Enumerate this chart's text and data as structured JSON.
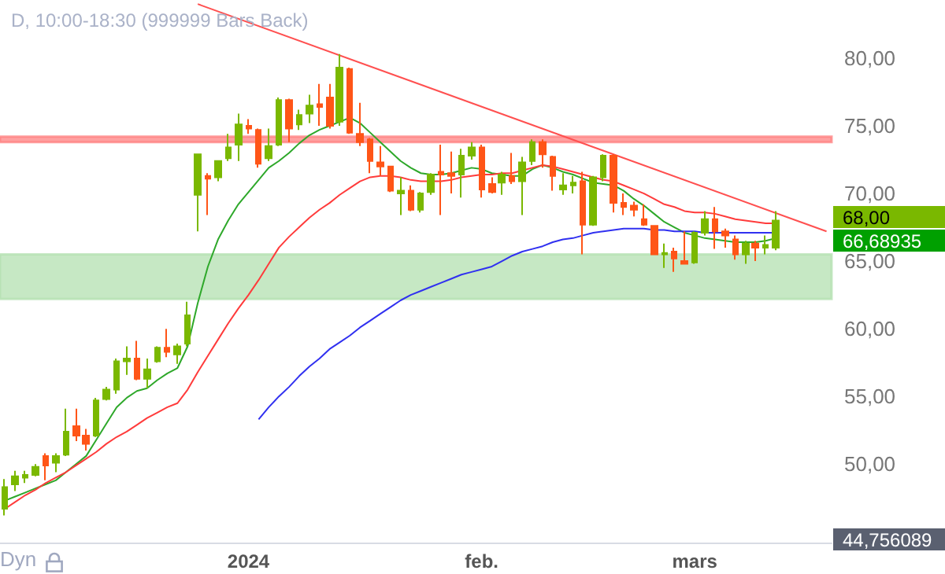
{
  "chart_data": {
    "type": "candlestick",
    "title": "D, 10:00-18:30 (999999 Bars Back)",
    "categories": [
      null,
      null,
      null,
      null,
      null,
      null,
      null,
      null,
      null,
      null,
      null,
      null,
      null,
      null,
      null,
      null,
      null,
      null,
      null,
      null,
      null,
      null,
      null,
      null,
      "2024",
      null,
      null,
      null,
      null,
      null,
      null,
      null,
      null,
      null,
      null,
      null,
      null,
      null,
      null,
      null,
      null,
      null,
      null,
      null,
      null,
      null,
      null,
      "feb.",
      null,
      null,
      null,
      null,
      null,
      null,
      null,
      null,
      null,
      null,
      null,
      null,
      null,
      null,
      null,
      null,
      null,
      null,
      null,
      null,
      "mars",
      null,
      null,
      null,
      null,
      null,
      null,
      null,
      null,
      null,
      null,
      null,
      null,
      null
    ],
    "ohlc": [
      [
        46.7,
        48.9,
        46.2,
        48.3
      ],
      [
        48.5,
        49.5,
        48.0,
        49.1
      ],
      [
        49.0,
        49.5,
        48.6,
        49.2
      ],
      [
        49.2,
        50.0,
        49.1,
        49.8
      ],
      [
        50.6,
        50.8,
        48.8,
        49.9
      ],
      [
        50.1,
        50.8,
        49.4,
        50.6
      ],
      [
        50.7,
        54.1,
        50.6,
        52.4
      ],
      [
        52.8,
        54.1,
        51.7,
        52.1
      ],
      [
        52.1,
        52.6,
        51.0,
        51.5
      ],
      [
        52.1,
        54.9,
        52.0,
        54.7
      ],
      [
        54.8,
        55.7,
        54.7,
        55.5
      ],
      [
        55.5,
        57.8,
        55.2,
        57.6
      ],
      [
        57.6,
        58.7,
        56.6,
        57.8
      ],
      [
        57.8,
        59.1,
        56.2,
        56.3
      ],
      [
        56.3,
        57.8,
        55.6,
        57.0
      ],
      [
        57.6,
        58.7,
        57.5,
        58.6
      ],
      [
        58.6,
        60.0,
        57.9,
        58.3
      ],
      [
        58.1,
        58.9,
        57.4,
        58.7
      ],
      [
        58.9,
        62.0,
        58.7,
        61.0
      ],
      [
        69.9,
        72.9,
        67.2,
        72.9
      ],
      [
        71.3,
        71.5,
        68.4,
        71.1
      ],
      [
        71.2,
        72.4,
        70.9,
        72.4
      ],
      [
        72.6,
        74.4,
        72.4,
        73.4
      ],
      [
        73.6,
        75.9,
        72.4,
        75.1
      ],
      [
        75.0,
        75.5,
        74.4,
        74.8
      ],
      [
        74.7,
        74.8,
        71.9,
        72.2
      ],
      [
        72.6,
        74.8,
        72.4,
        73.5
      ],
      [
        73.6,
        77.1,
        73.5,
        76.9
      ],
      [
        76.9,
        77.0,
        73.8,
        74.8
      ],
      [
        75.1,
        76.2,
        74.7,
        75.8
      ],
      [
        75.9,
        77.3,
        75.2,
        76.5
      ],
      [
        76.6,
        78.1,
        75.0,
        76.4
      ],
      [
        77.1,
        78.1,
        74.8,
        75.0
      ],
      [
        75.3,
        80.3,
        75.0,
        79.3
      ],
      [
        79.2,
        79.3,
        74.4,
        74.5
      ],
      [
        74.4,
        76.7,
        73.5,
        73.8
      ],
      [
        74.0,
        74.1,
        71.5,
        72.4
      ],
      [
        72.3,
        73.5,
        71.3,
        72.0
      ],
      [
        72.0,
        72.0,
        70.1,
        70.2
      ],
      [
        70.0,
        71.2,
        68.4,
        70.2
      ],
      [
        70.2,
        70.6,
        68.7,
        68.8
      ],
      [
        68.8,
        70.1,
        68.6,
        70.0
      ],
      [
        70.1,
        71.5,
        69.9,
        71.4
      ],
      [
        71.6,
        73.6,
        68.4,
        71.4
      ],
      [
        71.5,
        73.1,
        70.0,
        71.3
      ],
      [
        71.4,
        73.3,
        69.7,
        72.8
      ],
      [
        72.8,
        73.8,
        72.5,
        73.4
      ],
      [
        73.4,
        73.6,
        69.7,
        70.3
      ],
      [
        70.7,
        71.2,
        70.0,
        70.1
      ],
      [
        70.8,
        71.6,
        69.9,
        71.4
      ],
      [
        71.3,
        73.0,
        70.7,
        70.9
      ],
      [
        70.9,
        72.7,
        68.4,
        72.3
      ],
      [
        72.4,
        74.0,
        72.1,
        73.8
      ],
      [
        73.8,
        74.0,
        71.9,
        72.9
      ],
      [
        72.7,
        72.8,
        70.2,
        71.3
      ],
      [
        70.3,
        71.5,
        69.9,
        70.6
      ],
      [
        70.6,
        71.3,
        70.0,
        70.8
      ],
      [
        70.9,
        71.6,
        65.5,
        67.7
      ],
      [
        67.7,
        71.3,
        67.6,
        71.2
      ],
      [
        71.2,
        72.9,
        70.9,
        72.8
      ],
      [
        72.8,
        72.9,
        68.6,
        69.3
      ],
      [
        69.3,
        70.0,
        68.4,
        69.0
      ],
      [
        69.1,
        69.4,
        68.3,
        68.8
      ],
      [
        68.1,
        69.2,
        67.6,
        67.7
      ],
      [
        67.6,
        67.6,
        65.5,
        65.5
      ],
      [
        65.5,
        66.3,
        64.5,
        65.6
      ],
      [
        65.7,
        66.0,
        64.2,
        65.2
      ],
      [
        65.0,
        67.2,
        64.8,
        64.8
      ],
      [
        64.9,
        67.2,
        64.8,
        67.1
      ],
      [
        67.1,
        68.7,
        66.9,
        68.1
      ],
      [
        68.1,
        69.0,
        65.9,
        67.2
      ],
      [
        67.2,
        67.4,
        66.0,
        66.9
      ],
      [
        66.6,
        66.9,
        65.1,
        65.5
      ],
      [
        65.5,
        66.5,
        64.8,
        66.3
      ],
      [
        66.3,
        66.5,
        65.0,
        66.0
      ],
      [
        66.0,
        66.9,
        65.5,
        66.2
      ],
      [
        66.0,
        68.7,
        65.8,
        68.0
      ],
      null,
      null,
      null,
      null,
      null
    ],
    "colors": [
      "#7ab800",
      "#7ab800",
      "#7ab800",
      "#7ab800",
      "#ff5517",
      "#7ab800",
      "#7ab800",
      "#ff5517",
      "#ff5517",
      "#7ab800",
      "#7ab800",
      "#7ab800",
      "#7ab800",
      "#ff5517",
      "#7ab800",
      "#7ab800",
      "#ff5517",
      "#7ab800",
      "#7ab800",
      "#7ab800",
      "#ff5517",
      "#7ab800",
      "#7ab800",
      "#7ab800",
      "#ff5517",
      "#ff5517",
      "#7ab800",
      "#7ab800",
      "#ff5517",
      "#7ab800",
      "#7ab800",
      "#ff5517",
      "#ff5517",
      "#7ab800",
      "#ff5517",
      "#ff5517",
      "#ff5517",
      "#ff5517",
      "#ff5517",
      "#7ab800",
      "#ff5517",
      "#7ab800",
      "#7ab800",
      "#ff5517",
      "#ff5517",
      "#7ab800",
      "#7ab800",
      "#ff5517",
      "#ff5517",
      "#7ab800",
      "#ff5517",
      "#7ab800",
      "#7ab800",
      "#ff5517",
      "#ff5517",
      "#7ab800",
      "#7ab800",
      "#ff5517",
      "#7ab800",
      "#7ab800",
      "#ff5517",
      "#ff5517",
      "#ff5517",
      "#ff5517",
      "#ff5517",
      "#7ab800",
      "#ff5517",
      "#ff5517",
      "#7ab800",
      "#7ab800",
      "#ff5517",
      "#ff5517",
      "#ff5517",
      "#7ab800",
      "#ff5517",
      "#7ab800",
      "#7ab800",
      null,
      null,
      null,
      null,
      null
    ],
    "series": [
      {
        "type": "line",
        "color": "#2ea82a",
        "values": [
          47.3,
          47.6,
          47.9,
          48.2,
          48.5,
          48.8,
          49.4,
          50.0,
          50.6,
          51.8,
          53.0,
          54.2,
          54.9,
          55.4,
          55.6,
          56.2,
          56.7,
          57.1,
          58.7,
          61.9,
          64.6,
          66.6,
          68.0,
          69.2,
          70.1,
          71.0,
          71.9,
          72.4,
          73.0,
          73.7,
          74.3,
          74.7,
          75.0,
          75.3,
          75.6,
          75.2,
          74.5,
          73.8,
          73.1,
          72.4,
          71.9,
          71.5,
          71.4,
          71.4,
          71.5,
          71.7,
          71.9,
          71.8,
          71.5,
          71.4,
          71.3,
          71.3,
          71.8,
          72.1,
          71.9,
          71.6,
          71.4,
          71.1,
          70.8,
          70.7,
          70.6,
          70.2,
          69.6,
          69.1,
          68.5,
          67.9,
          67.5,
          67.1,
          66.9,
          66.7,
          66.6,
          66.5,
          66.4,
          66.4,
          66.4,
          66.5,
          66.7,
          null,
          null,
          null,
          null,
          null
        ]
      },
      {
        "type": "line",
        "color": "#ff3b3b",
        "values": [
          46.7,
          47.2,
          47.7,
          48.1,
          48.6,
          49.0,
          49.4,
          49.9,
          50.4,
          50.9,
          51.5,
          52.0,
          52.4,
          52.9,
          53.4,
          53.8,
          54.2,
          54.5,
          55.5,
          56.8,
          58.0,
          59.2,
          60.4,
          61.5,
          62.5,
          63.6,
          64.8,
          66.0,
          66.8,
          67.5,
          68.2,
          68.8,
          69.3,
          69.9,
          70.4,
          70.9,
          71.2,
          71.3,
          71.3,
          71.2,
          71.0,
          70.9,
          70.9,
          70.9,
          71.0,
          71.2,
          71.3,
          71.4,
          71.4,
          71.5,
          71.5,
          71.7,
          71.9,
          72.1,
          72.0,
          71.8,
          71.6,
          71.4,
          71.2,
          71.0,
          70.9,
          70.6,
          70.3,
          70.0,
          69.6,
          69.2,
          69.0,
          68.7,
          68.6,
          68.6,
          68.5,
          68.3,
          68.1,
          68.0,
          67.9,
          67.8,
          67.8,
          null,
          null,
          null,
          null,
          null
        ]
      },
      {
        "type": "line",
        "color": "#3030f0",
        "values": [
          null,
          null,
          null,
          null,
          null,
          null,
          null,
          null,
          null,
          null,
          null,
          null,
          null,
          null,
          null,
          null,
          null,
          null,
          null,
          null,
          null,
          null,
          null,
          null,
          null,
          53.3,
          54.2,
          55.0,
          55.7,
          56.5,
          57.2,
          57.8,
          58.5,
          59.0,
          59.5,
          60.1,
          60.6,
          61.1,
          61.6,
          62.1,
          62.5,
          62.8,
          63.1,
          63.4,
          63.7,
          64.0,
          64.2,
          64.4,
          64.6,
          65.0,
          65.4,
          65.7,
          65.9,
          66.1,
          66.4,
          66.6,
          66.7,
          66.9,
          67.1,
          67.2,
          67.3,
          67.4,
          67.4,
          67.4,
          67.3,
          67.3,
          67.2,
          67.2,
          67.2,
          67.1,
          67.1,
          67.1,
          67.1,
          67.1,
          67.1,
          67.1,
          67.1,
          null,
          null,
          null,
          null,
          null
        ]
      },
      {
        "type": "line",
        "color": "#ff5050",
        "values": [
          null,
          null,
          null,
          null,
          null,
          null,
          null,
          null,
          null,
          null,
          null,
          null,
          null,
          null,
          null,
          null,
          null,
          null,
          null,
          84.0,
          null,
          null,
          null,
          null,
          null,
          null,
          null,
          null,
          null,
          null,
          null,
          null,
          null,
          null,
          null,
          null,
          null,
          null,
          null,
          null,
          null,
          null,
          null,
          null,
          null,
          null,
          null,
          null,
          null,
          null,
          null,
          null,
          null,
          null,
          null,
          null,
          null,
          null,
          null,
          null,
          null,
          null,
          null,
          null,
          null,
          null,
          null,
          null,
          null,
          null,
          null,
          null,
          null,
          null,
          null,
          null,
          null,
          null,
          null,
          null,
          null,
          67.2
        ]
      }
    ],
    "bands": [
      {
        "axis": "y",
        "from": 73.8,
        "to": 74.2,
        "color": "#ff8080"
      },
      {
        "axis": "y",
        "from": 62.2,
        "to": 65.5,
        "color": "#b3e0b0"
      }
    ],
    "annotations": [
      "68,00",
      "66,68935",
      "44,756089",
      "Dyn"
    ],
    "ylim": [
      44.2,
      84.3
    ],
    "yticks": [
      {
        "value": 50,
        "label": "50,00"
      },
      {
        "value": 55,
        "label": "55,00"
      },
      {
        "value": 60,
        "label": "60,00"
      },
      {
        "value": 65,
        "label": "65,00"
      },
      {
        "value": 70,
        "label": "70,00"
      },
      {
        "value": 75,
        "label": "75,00"
      },
      {
        "value": 80,
        "label": "80,00"
      }
    ],
    "grid": false
  }
}
